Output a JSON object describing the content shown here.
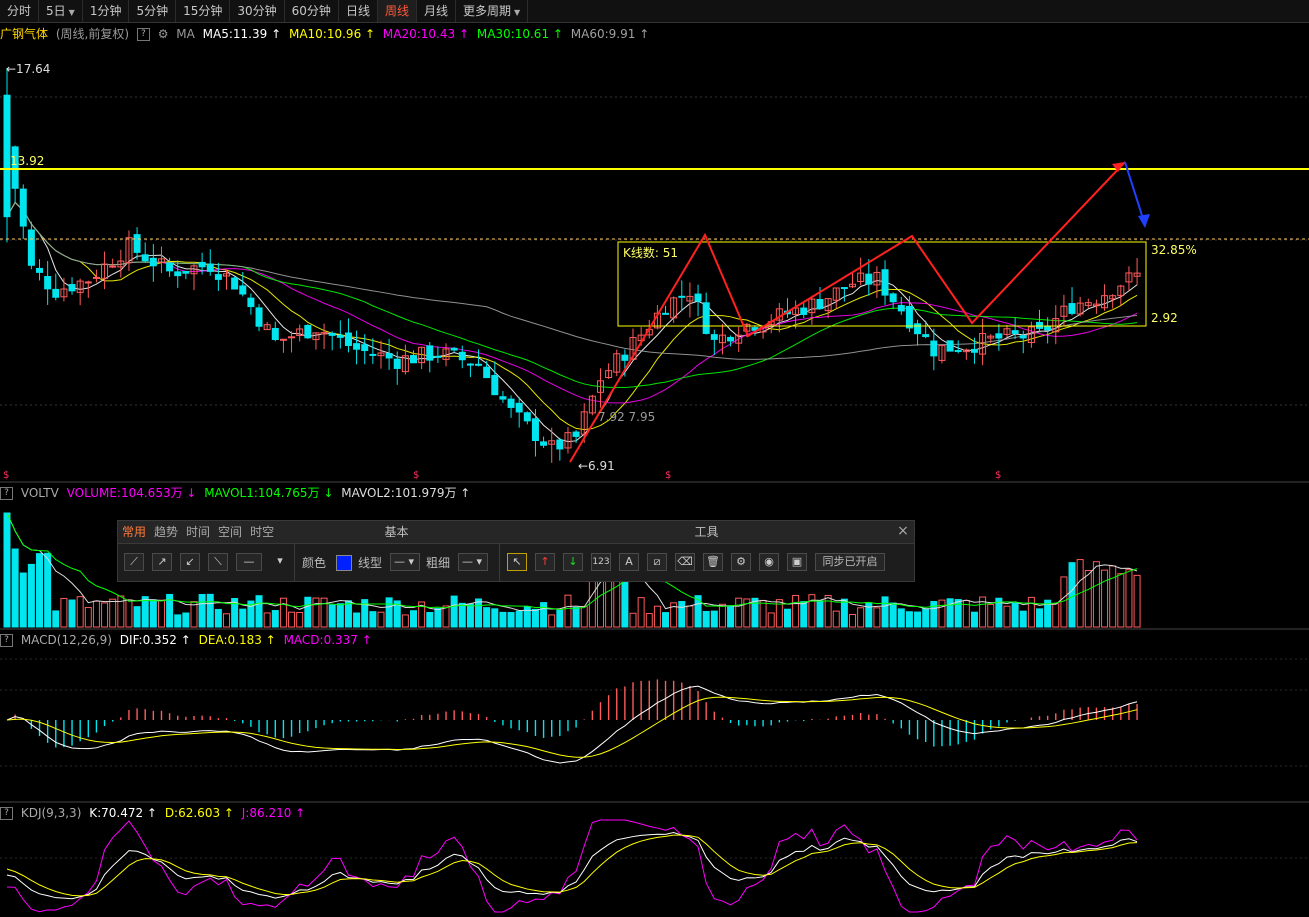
{
  "tabs": [
    {
      "label": "分时",
      "active": false,
      "dropdown": false
    },
    {
      "label": "5日",
      "active": false,
      "dropdown": true
    },
    {
      "label": "1分钟",
      "active": false,
      "dropdown": false
    },
    {
      "label": "5分钟",
      "active": false,
      "dropdown": false
    },
    {
      "label": "15分钟",
      "active": false,
      "dropdown": false
    },
    {
      "label": "30分钟",
      "active": false,
      "dropdown": false
    },
    {
      "label": "60分钟",
      "active": false,
      "dropdown": false
    },
    {
      "label": "日线",
      "active": false,
      "dropdown": false
    },
    {
      "label": "周线",
      "active": true,
      "dropdown": false
    },
    {
      "label": "月线",
      "active": false,
      "dropdown": false
    },
    {
      "label": "更多周期",
      "active": false,
      "dropdown": true
    }
  ],
  "info": {
    "stock_name": "广钢气体",
    "period": "(周线,前复权)",
    "help": "?",
    "ma_label": "MA",
    "ma5": "MA5:11.39 ↑",
    "ma10": "MA10:10.96 ↑",
    "ma20": "MA20:10.43 ↑",
    "ma30": "MA30:10.61 ↑",
    "ma60": "MA60:9.91 ↑"
  },
  "price_labels": {
    "high": "←17.64",
    "resistance": "13.92",
    "low": "←6.91",
    "mid": "7.92  7.95",
    "box_count": "K线数:  51",
    "pct": "32.85%",
    "box_low": "2.92"
  },
  "vol": {
    "name": "VOLTV",
    "volume": "VOLUME:104.653万 ↓",
    "mavol1": "MAVOL1:104.765万 ↓",
    "mavol2": "MAVOL2:101.979万 ↑"
  },
  "macd": {
    "name": "MACD(12,26,9)",
    "dif": "DIF:0.352 ↑",
    "dea": "DEA:0.183 ↑",
    "macd": "MACD:0.337 ↑"
  },
  "kdj": {
    "name": "KDJ(9,3,3)",
    "k": "K:70.472 ↑",
    "d": "D:62.603 ↑",
    "j": "J:86.210 ↑"
  },
  "toolbar": {
    "tabs": [
      "常用",
      "趋势",
      "时间",
      "空间",
      "时空"
    ],
    "basic_title": "基本",
    "tools_title": "工具",
    "color_label": "颜色",
    "linetype_label": "线型",
    "width_label": "粗细",
    "linetype_value": "—",
    "width_value": "—",
    "num_btn": "123",
    "text_btn": "A",
    "sync_label": "同步已开启",
    "close": "×"
  },
  "colors": {
    "up": "#ff5b5b",
    "down": "#00e5ee",
    "ma5": "#ffffff",
    "ma10": "#ffff00",
    "ma20": "#ff00ff",
    "ma30": "#00ff00",
    "ma60": "#a0a0a0"
  }
}
